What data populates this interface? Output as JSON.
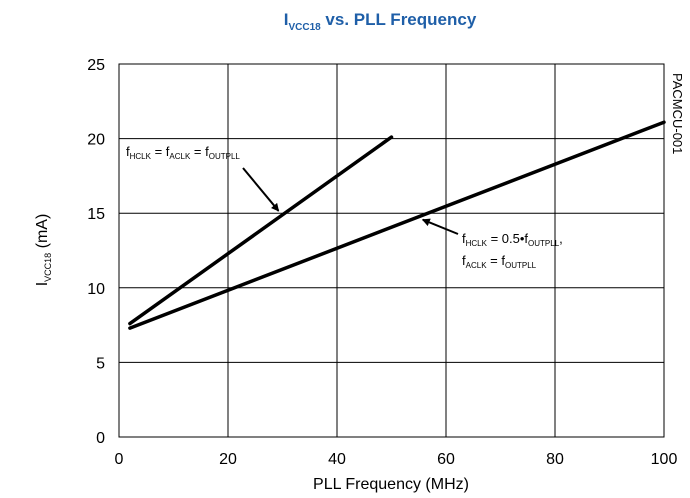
{
  "chart_data": {
    "type": "line",
    "title": {
      "main": "I",
      "sub": "VCC18",
      "rest": " vs. PLL Frequency"
    },
    "xlabel": "PLL Frequency (MHz)",
    "ylabel": {
      "main": "I",
      "sub": "VCC18",
      "rest": " (mA)"
    },
    "xlim": [
      0,
      100
    ],
    "ylim": [
      0,
      25
    ],
    "xticks": [
      0,
      20,
      40,
      60,
      80,
      100
    ],
    "yticks": [
      0,
      5,
      10,
      15,
      20,
      25
    ],
    "grid": true,
    "side_label": "PACMCU-001",
    "series": [
      {
        "x": [
          2,
          50
        ],
        "y": [
          7.6,
          20.1
        ]
      },
      {
        "x": [
          2,
          100
        ],
        "y": [
          7.3,
          21.1
        ]
      }
    ],
    "annotations": [
      {
        "lines": [
          [
            {
              "t": "f"
            },
            {
              "t": "HCLK",
              "sub": true
            },
            {
              "t": " = f"
            },
            {
              "t": "ACLK",
              "sub": true
            },
            {
              "t": " = f"
            },
            {
              "t": "OUTPLL",
              "sub": true
            }
          ]
        ],
        "anchor_series": 0
      },
      {
        "lines": [
          [
            {
              "t": "f"
            },
            {
              "t": "HCLK",
              "sub": true
            },
            {
              "t": " = 0.5•f"
            },
            {
              "t": "OUTPLL",
              "sub": true
            },
            {
              "t": ","
            }
          ],
          [
            {
              "t": "f"
            },
            {
              "t": "ACLK",
              "sub": true
            },
            {
              "t": " = f"
            },
            {
              "t": "OUTPLL",
              "sub": true
            }
          ]
        ],
        "anchor_series": 1
      }
    ]
  },
  "colors": {
    "title": "#1f5fa8",
    "line": "#000000",
    "grid": "#000000"
  }
}
